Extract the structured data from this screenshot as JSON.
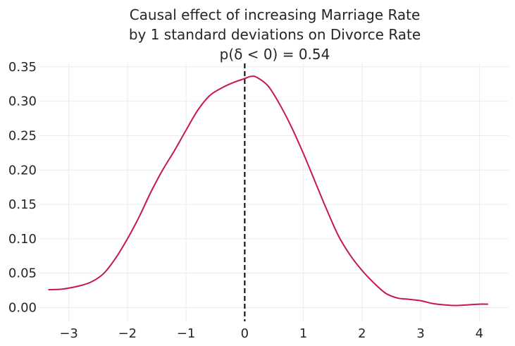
{
  "chart_data": {
    "type": "line",
    "title_lines": [
      "Causal effect of increasing Marriage Rate",
      "by 1 standard deviations on Divorce Rate",
      "p(δ < 0) = 0.54"
    ],
    "xlabel": "",
    "ylabel": "",
    "xlim": [
      -3.5,
      4.5
    ],
    "ylim": [
      -0.02,
      0.355
    ],
    "x_ticks": [
      -3,
      -2,
      -1,
      0,
      1,
      2,
      3,
      4
    ],
    "x_tick_labels": [
      "−3",
      "−2",
      "−1",
      "0",
      "1",
      "2",
      "3",
      "4"
    ],
    "y_ticks": [
      0.0,
      0.05,
      0.1,
      0.15,
      0.2,
      0.25,
      0.3,
      0.35
    ],
    "y_tick_labels": [
      "0.00",
      "0.05",
      "0.10",
      "0.15",
      "0.20",
      "0.25",
      "0.30",
      "0.35"
    ],
    "grid": true,
    "legend": "none",
    "vline": {
      "x": 0,
      "style": "dashed",
      "color": "#000000"
    },
    "series": [
      {
        "color": "#c8174f",
        "x": [
          -3.35,
          -3.1,
          -2.8,
          -2.6,
          -2.4,
          -2.2,
          -2.0,
          -1.8,
          -1.6,
          -1.4,
          -1.2,
          -1.0,
          -0.8,
          -0.6,
          -0.4,
          -0.2,
          0.0,
          0.1,
          0.2,
          0.4,
          0.6,
          0.8,
          1.0,
          1.2,
          1.4,
          1.6,
          1.8,
          2.0,
          2.2,
          2.4,
          2.6,
          2.8,
          3.0,
          3.2,
          3.4,
          3.6,
          3.8,
          4.0,
          4.15
        ],
        "y": [
          0.026,
          0.027,
          0.032,
          0.038,
          0.05,
          0.072,
          0.1,
          0.132,
          0.168,
          0.2,
          0.228,
          0.258,
          0.287,
          0.308,
          0.319,
          0.327,
          0.333,
          0.336,
          0.335,
          0.322,
          0.295,
          0.262,
          0.224,
          0.183,
          0.142,
          0.104,
          0.076,
          0.054,
          0.036,
          0.021,
          0.014,
          0.012,
          0.01,
          0.006,
          0.004,
          0.003,
          0.004,
          0.005,
          0.005
        ]
      }
    ]
  }
}
